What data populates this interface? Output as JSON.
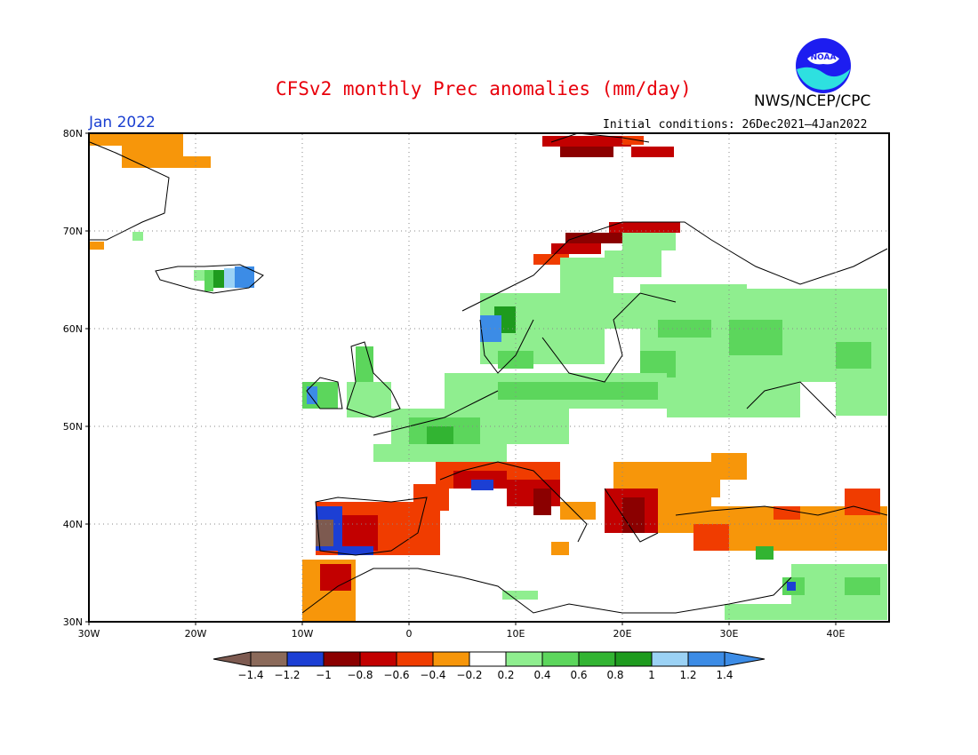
{
  "title": "CFSv2 monthly Prec anomalies (mm/day)",
  "organization": "NWS/NCEP/CPC",
  "logo_text": "NOAA",
  "month": "Jan 2022",
  "initial_conditions": "Initial conditions: 26Dec2021–4Jan2022",
  "map": {
    "lon_range": [
      -30,
      45
    ],
    "lat_range": [
      30,
      80
    ],
    "grid": true,
    "lat_labels": [
      "80N",
      "70N",
      "60N",
      "50N",
      "40N",
      "30N"
    ],
    "lon_labels": [
      "30W",
      "20W",
      "10W",
      "0",
      "10E",
      "20E",
      "30E",
      "40E"
    ]
  },
  "colorbar": {
    "labels": [
      "−1.4",
      "−1.2",
      "−1",
      "−0.8",
      "−0.6",
      "−0.4",
      "−0.2",
      "0.2",
      "0.4",
      "0.6",
      "0.8",
      "1",
      "1.2",
      "1.4"
    ],
    "colors": [
      "#7d5a50",
      "#8b6a5a",
      "#1c3fd4",
      "#8b0000",
      "#c20000",
      "#f03c00",
      "#f7960a",
      "#ffffff",
      "#8fee8f",
      "#5cd65c",
      "#32b432",
      "#1e9b1e",
      "#9bd2f5",
      "#3c8ce6",
      "#3c8ce6"
    ]
  },
  "anomaly_regions": [
    {
      "name": "Greenland coast",
      "class": "-0.4 to -0.2",
      "color": "#f7960a"
    },
    {
      "name": "Iceland",
      "class": "0.4 to 1.4",
      "color": "#5cd65c"
    },
    {
      "name": "Svalbard",
      "class": "-1 to -0.4",
      "color": "#c20000"
    },
    {
      "name": "Northern Norway",
      "class": "-1 to -0.6",
      "color": "#8b0000"
    },
    {
      "name": "Scandinavia and Northern Europe",
      "class": "0.2 to 0.8",
      "color": "#8fee8f"
    },
    {
      "name": "Western Norway",
      "class": "0.8 to 1.4",
      "color": "#3c8ce6"
    },
    {
      "name": "Ireland and Britain",
      "class": "0.2 to 1.2",
      "color": "#5cd65c"
    },
    {
      "name": "Russia",
      "class": "0.2 to 0.6",
      "color": "#8fee8f"
    },
    {
      "name": "Iberian Peninsula",
      "class": "-1.4 to -0.4",
      "color": "#f03c00"
    },
    {
      "name": "Southern France and Northern Italy",
      "class": "-1 to -0.4",
      "color": "#c20000"
    },
    {
      "name": "Balkans",
      "class": "-0.8 to -0.2",
      "color": "#f7960a"
    },
    {
      "name": "Turkey",
      "class": "-0.6 to -0.2",
      "color": "#f7960a"
    },
    {
      "name": "Eastern Mediterranean",
      "class": "0.2 to 1.4",
      "color": "#5cd65c"
    }
  ]
}
